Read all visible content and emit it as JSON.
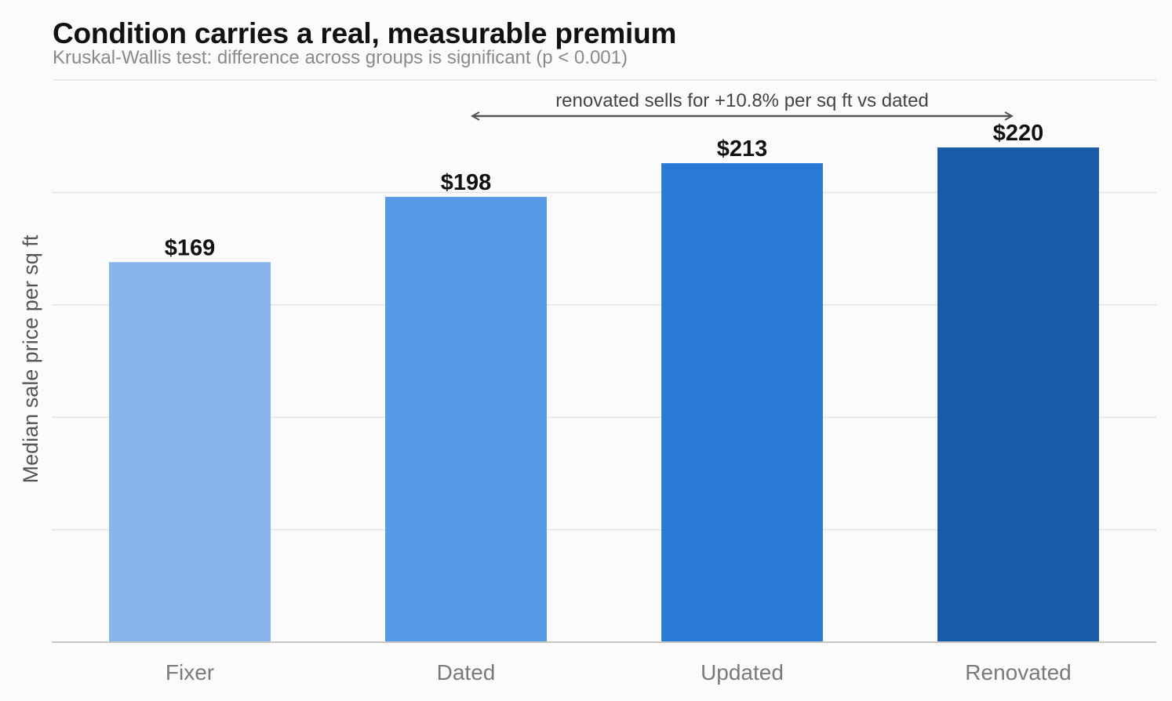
{
  "chart_data": {
    "type": "bar",
    "title": "Condition carries a real, measurable premium",
    "subtitle": "Kruskal-Wallis test: difference across groups is significant (p < 0.001)",
    "xlabel": "",
    "ylabel": "Median sale price per sq ft",
    "categories": [
      "Fixer",
      "Dated",
      "Updated",
      "Renovated"
    ],
    "values": [
      169,
      198,
      213,
      220
    ],
    "value_labels": [
      "$169",
      "$198",
      "$213",
      "$220"
    ],
    "colors": [
      "#87b5ec",
      "#5699e4",
      "#2b79d6",
      "#1a5ba8"
    ],
    "ylim": [
      0,
      250
    ],
    "grid": "horizontal",
    "y_tick_labels_shown": false,
    "annotation": {
      "text": "renovated sells for +10.8% per sq ft vs dated",
      "from_category": "Dated",
      "to_category": "Renovated"
    },
    "colors_style": {
      "background": "#fbfbfb",
      "grid": "#e4e4df",
      "axis": "#c9c9c2",
      "arrow": "#555555"
    }
  }
}
